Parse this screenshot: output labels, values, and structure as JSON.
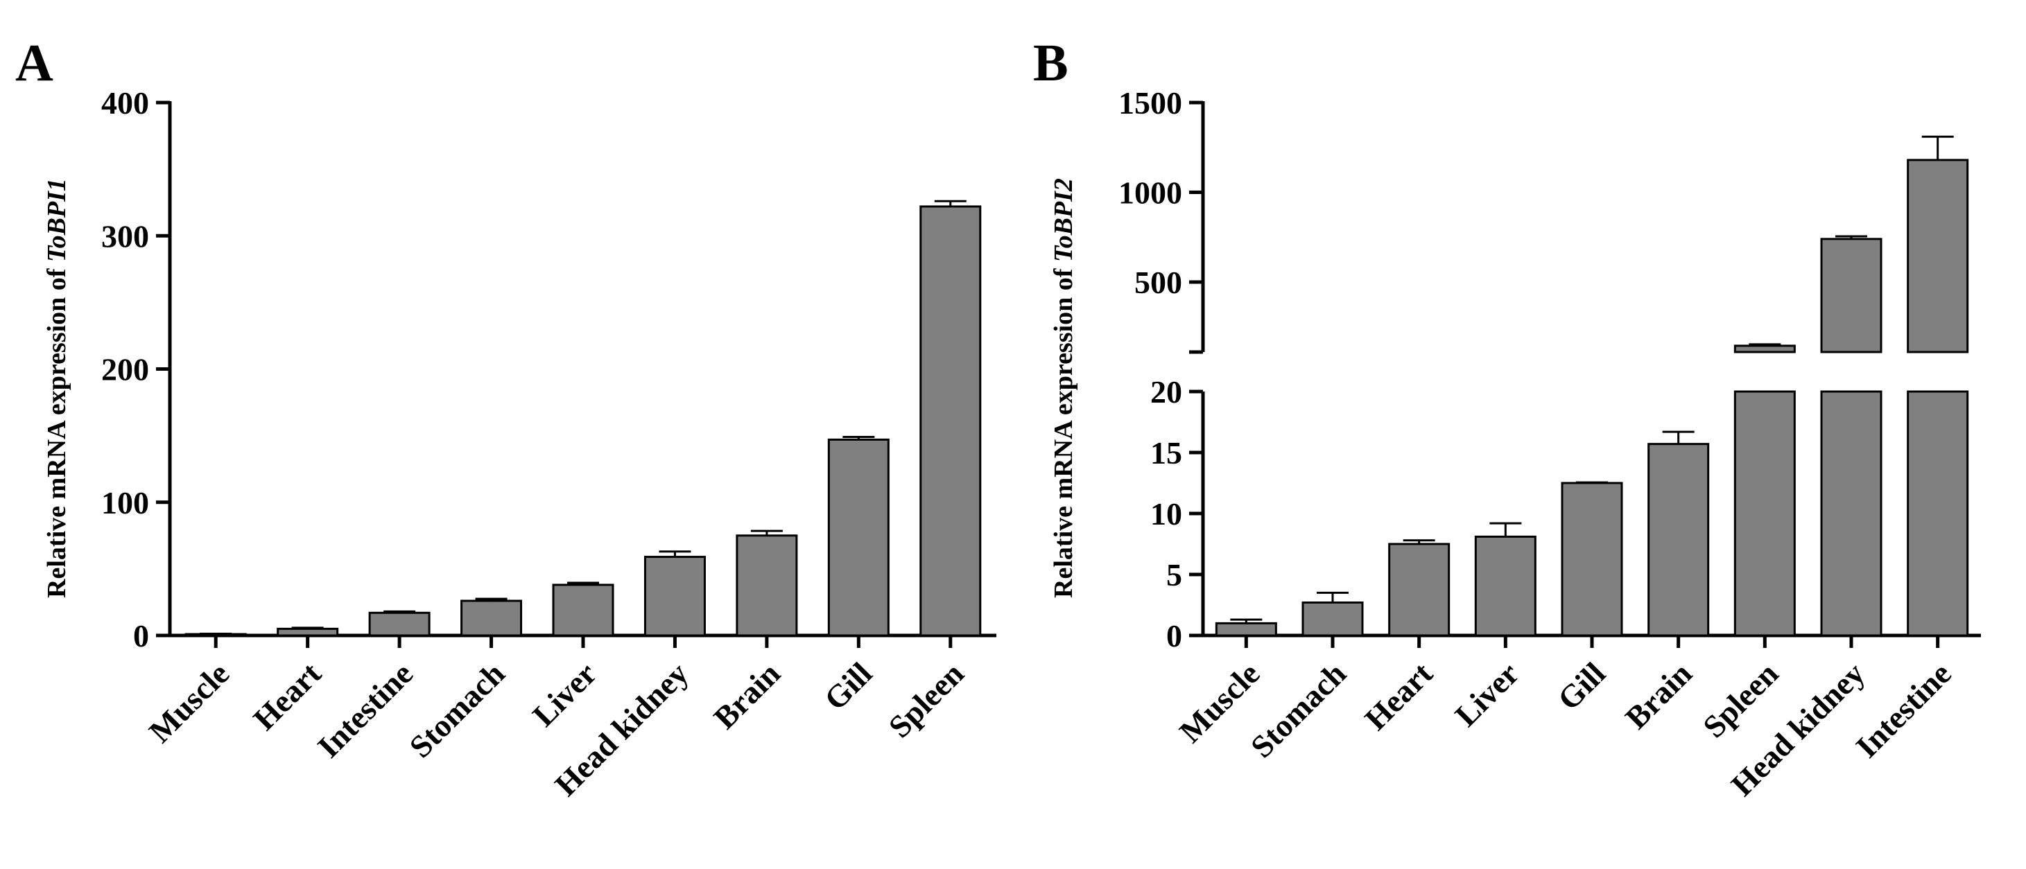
{
  "chart_data": [
    {
      "panel": "A",
      "type": "bar",
      "gene": "ToBPI1",
      "ylabel_prefix": "Relative mRNA expression of ",
      "xlabel": "",
      "ylim": [
        0,
        400
      ],
      "yticks": [
        0,
        100,
        200,
        300,
        400
      ],
      "categories": [
        "Muscle",
        "Heart",
        "Intestine",
        "Stomach",
        "Liver",
        "Head kidney",
        "Brain",
        "Gill",
        "Spleen"
      ],
      "values": [
        1,
        5,
        17,
        26,
        38,
        59,
        75,
        147,
        322
      ],
      "errors": [
        0.3,
        0.8,
        1,
        1.5,
        1.5,
        4,
        3.5,
        2,
        4
      ]
    },
    {
      "panel": "B",
      "type": "bar",
      "gene": "ToBPI2",
      "ylabel_prefix": "Relative mRNA expression of ",
      "xlabel": "",
      "axis_break": true,
      "lower_ylim": [
        0,
        20
      ],
      "lower_yticks": [
        0,
        5,
        10,
        15,
        20
      ],
      "upper_ylim": [
        110,
        1500
      ],
      "upper_yticks": [
        500,
        1000,
        1500
      ],
      "categories": [
        "Muscle",
        "Stomach",
        "Heart",
        "Liver",
        "Gill",
        "Brain",
        "Spleen",
        "Head kidney",
        "Intestine"
      ],
      "values": [
        1.0,
        2.7,
        7.5,
        8.1,
        12.5,
        15.7,
        145,
        740,
        1180
      ],
      "errors": [
        0.3,
        0.8,
        0.3,
        1.1,
        0.05,
        1.0,
        8,
        15,
        130
      ]
    }
  ]
}
